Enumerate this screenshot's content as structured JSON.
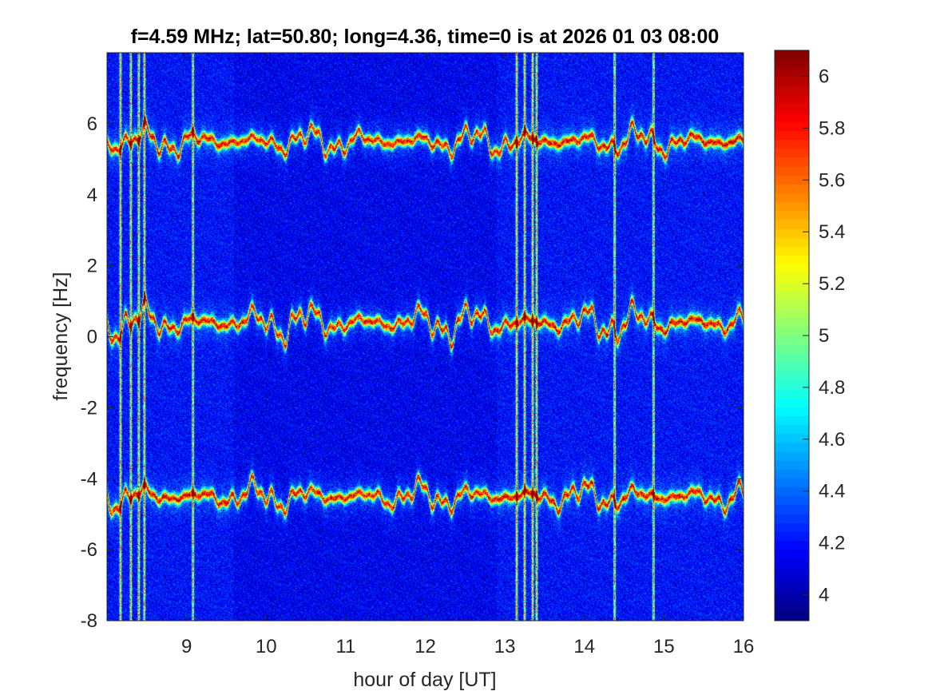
{
  "chart_data": {
    "type": "heatmap",
    "title": "f=4.59 MHz;  lat=50.80; long=4.36, time=0 is at 2026 01 03 08:00",
    "xlabel": "hour of day [UT]",
    "ylabel": "frequency [Hz]",
    "xlim": [
      8.0,
      16.0
    ],
    "ylim": [
      -8,
      8
    ],
    "xticks": [
      9,
      10,
      11,
      12,
      13,
      14,
      15,
      16
    ],
    "yticks": [
      -8,
      -6,
      -4,
      -2,
      0,
      2,
      4,
      6
    ],
    "colormap": "jet",
    "clim": [
      3.9,
      6.1
    ],
    "colorbar_ticks": [
      4,
      4.2,
      4.4,
      4.6,
      4.8,
      5,
      5.2,
      5.4,
      5.6,
      5.8,
      6
    ],
    "background_level": 4.2,
    "doppler_traces": [
      {
        "center_hz": 5.5,
        "peak_level": 6.0
      },
      {
        "center_hz": 0.4,
        "peak_level": 6.0
      },
      {
        "center_hz": -4.5,
        "peak_level": 6.0
      }
    ],
    "broadband_interference_hours": [
      8.17,
      8.3,
      8.4,
      8.47,
      9.08,
      13.15,
      13.25,
      13.35,
      13.4,
      14.38,
      14.87
    ],
    "grid": false,
    "legend": "none"
  }
}
